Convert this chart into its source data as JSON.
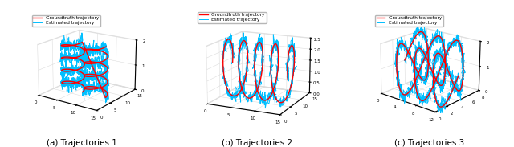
{
  "fig_width": 6.4,
  "fig_height": 1.83,
  "dpi": 100,
  "background_color": "white",
  "gt_color": "#FF0000",
  "est_color": "#00BFFF",
  "gt_linewidth": 1.0,
  "est_linewidth": 0.7,
  "legend_fontsize": 4.2,
  "caption_fontsize": 7.5,
  "captions": [
    "(a) Trajectories 1.",
    "(b) Trajectories 2",
    "(c) Trajectories 3"
  ],
  "noise_std": 0.12
}
